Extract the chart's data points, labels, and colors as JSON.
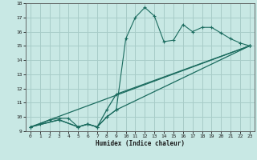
{
  "xlabel": "Humidex (Indice chaleur)",
  "xlim": [
    -0.5,
    23.5
  ],
  "ylim": [
    9,
    18
  ],
  "yticks": [
    9,
    10,
    11,
    12,
    13,
    14,
    15,
    16,
    17,
    18
  ],
  "xticks": [
    0,
    1,
    2,
    3,
    4,
    5,
    6,
    7,
    8,
    9,
    10,
    11,
    12,
    13,
    14,
    15,
    16,
    17,
    18,
    19,
    20,
    21,
    22,
    23
  ],
  "background_color": "#c8e8e4",
  "grid_color": "#a8ccc8",
  "line_color": "#1a6b5e",
  "line1_x": [
    0,
    1,
    2,
    3,
    4,
    5,
    6,
    7,
    8,
    9,
    10,
    11,
    12,
    13,
    14,
    15,
    16,
    17,
    18,
    19,
    20,
    21,
    22,
    23
  ],
  "line1_y": [
    9.3,
    9.5,
    9.8,
    9.9,
    9.9,
    9.3,
    9.5,
    9.3,
    10.0,
    10.5,
    15.5,
    17.0,
    17.7,
    17.1,
    15.3,
    15.4,
    16.5,
    16.0,
    16.3,
    16.3,
    15.9,
    15.5,
    15.2,
    15.0
  ],
  "line2_x": [
    0,
    23
  ],
  "line2_y": [
    9.3,
    15.0
  ],
  "line3_x": [
    0,
    3,
    5,
    6,
    7,
    8,
    9,
    23
  ],
  "line3_y": [
    9.3,
    9.8,
    9.3,
    9.5,
    9.3,
    10.5,
    11.6,
    15.0
  ],
  "line4_x": [
    0,
    3,
    5,
    6,
    7,
    8,
    9,
    23
  ],
  "line4_y": [
    9.3,
    9.8,
    9.3,
    9.5,
    9.3,
    10.0,
    10.5,
    15.0
  ]
}
